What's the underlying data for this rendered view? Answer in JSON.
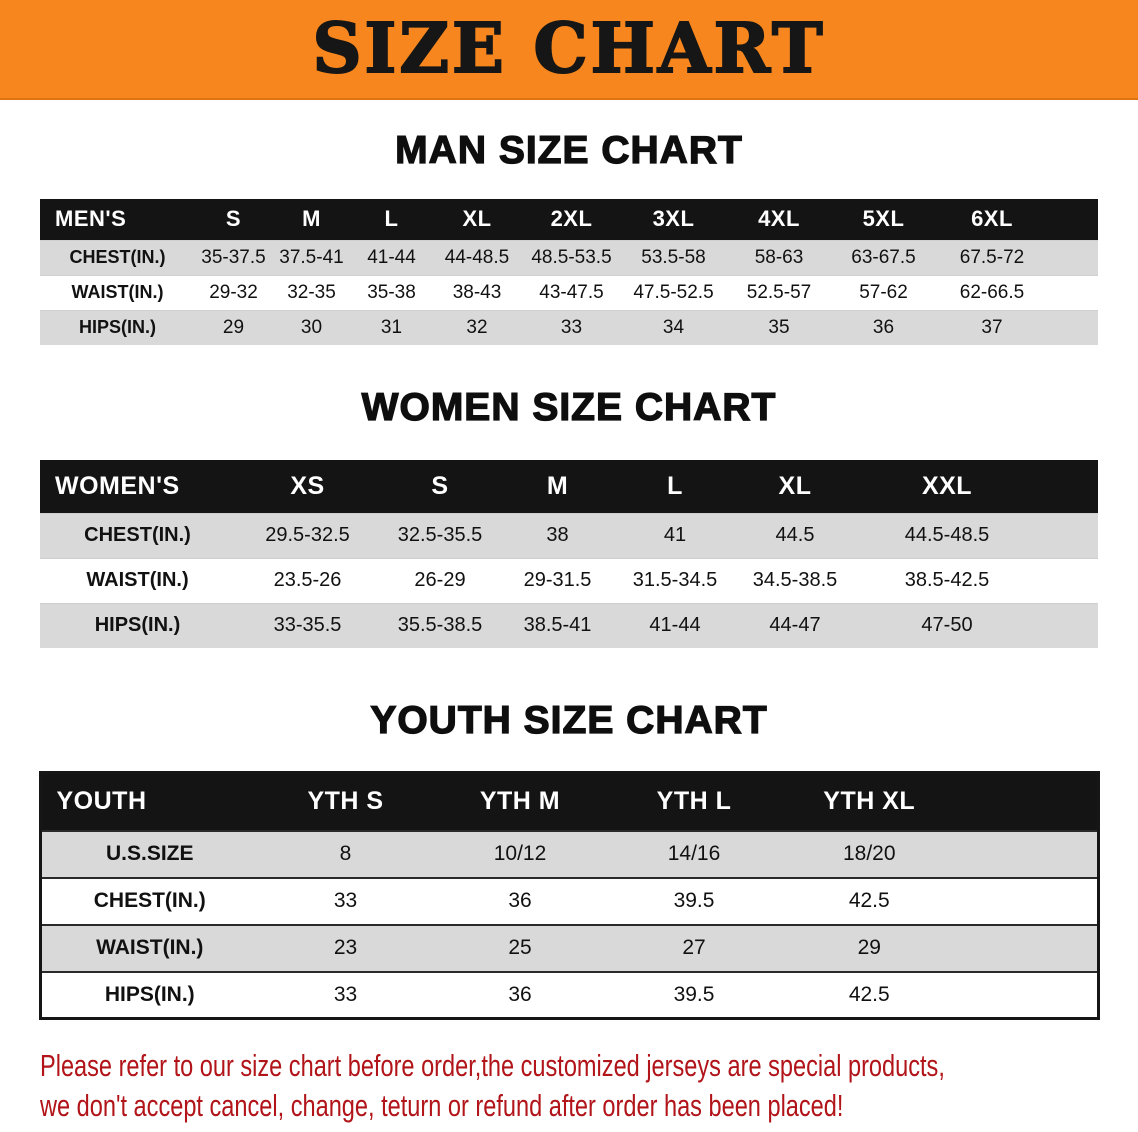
{
  "banner": {
    "title": "SIZE CHART"
  },
  "men": {
    "heading": "MAN SIZE CHART",
    "header": [
      "MEN'S",
      "S",
      "M",
      "L",
      "XL",
      "2XL",
      "3XL",
      "4XL",
      "5XL",
      "6XL"
    ],
    "rows": [
      [
        "CHEST(IN.)",
        "35-37.5",
        "37.5-41",
        "41-44",
        "44-48.5",
        "48.5-53.5",
        "53.5-58",
        "58-63",
        "63-67.5",
        "67.5-72"
      ],
      [
        "WAIST(IN.)",
        "29-32",
        "32-35",
        "35-38",
        "38-43",
        "43-47.5",
        "47.5-52.5",
        "52.5-57",
        "57-62",
        "62-66.5"
      ],
      [
        "HIPS(IN.)",
        "29",
        "30",
        "31",
        "32",
        "33",
        "34",
        "35",
        "36",
        "37"
      ]
    ]
  },
  "women": {
    "heading": "WOMEN SIZE CHART",
    "header": [
      "WOMEN'S",
      "XS",
      "S",
      "M",
      "L",
      "XL",
      "XXL"
    ],
    "rows": [
      [
        "CHEST(IN.)",
        "29.5-32.5",
        "32.5-35.5",
        "38",
        "41",
        "44.5",
        "44.5-48.5"
      ],
      [
        "WAIST(IN.)",
        "23.5-26",
        "26-29",
        "29-31.5",
        "31.5-34.5",
        "34.5-38.5",
        "38.5-42.5"
      ],
      [
        "HIPS(IN.)",
        "33-35.5",
        "35.5-38.5",
        "38.5-41",
        "41-44",
        "44-47",
        "47-50"
      ]
    ]
  },
  "youth": {
    "heading": "YOUTH SIZE CHART",
    "header": [
      "YOUTH",
      "YTH S",
      "YTH M",
      "YTH L",
      "YTH XL"
    ],
    "rows": [
      [
        "U.S.SIZE",
        "8",
        "10/12",
        "14/16",
        "18/20"
      ],
      [
        "CHEST(IN.)",
        "33",
        "36",
        "39.5",
        "42.5"
      ],
      [
        "WAIST(IN.)",
        "23",
        "25",
        "27",
        "29"
      ],
      [
        "HIPS(IN.)",
        "33",
        "36",
        "39.5",
        "42.5"
      ]
    ]
  },
  "disclaimer": {
    "line1": "Please refer to our size chart before order,the customized jerseys are special products,",
    "line2": "we don't accept cancel, change, teturn or refund after order has been placed!"
  },
  "colors": {
    "banner_bg": "#f6861d",
    "header_bg": "#141414",
    "row_alt": "#d9d9d9",
    "disclaimer_red": "#b11419"
  }
}
